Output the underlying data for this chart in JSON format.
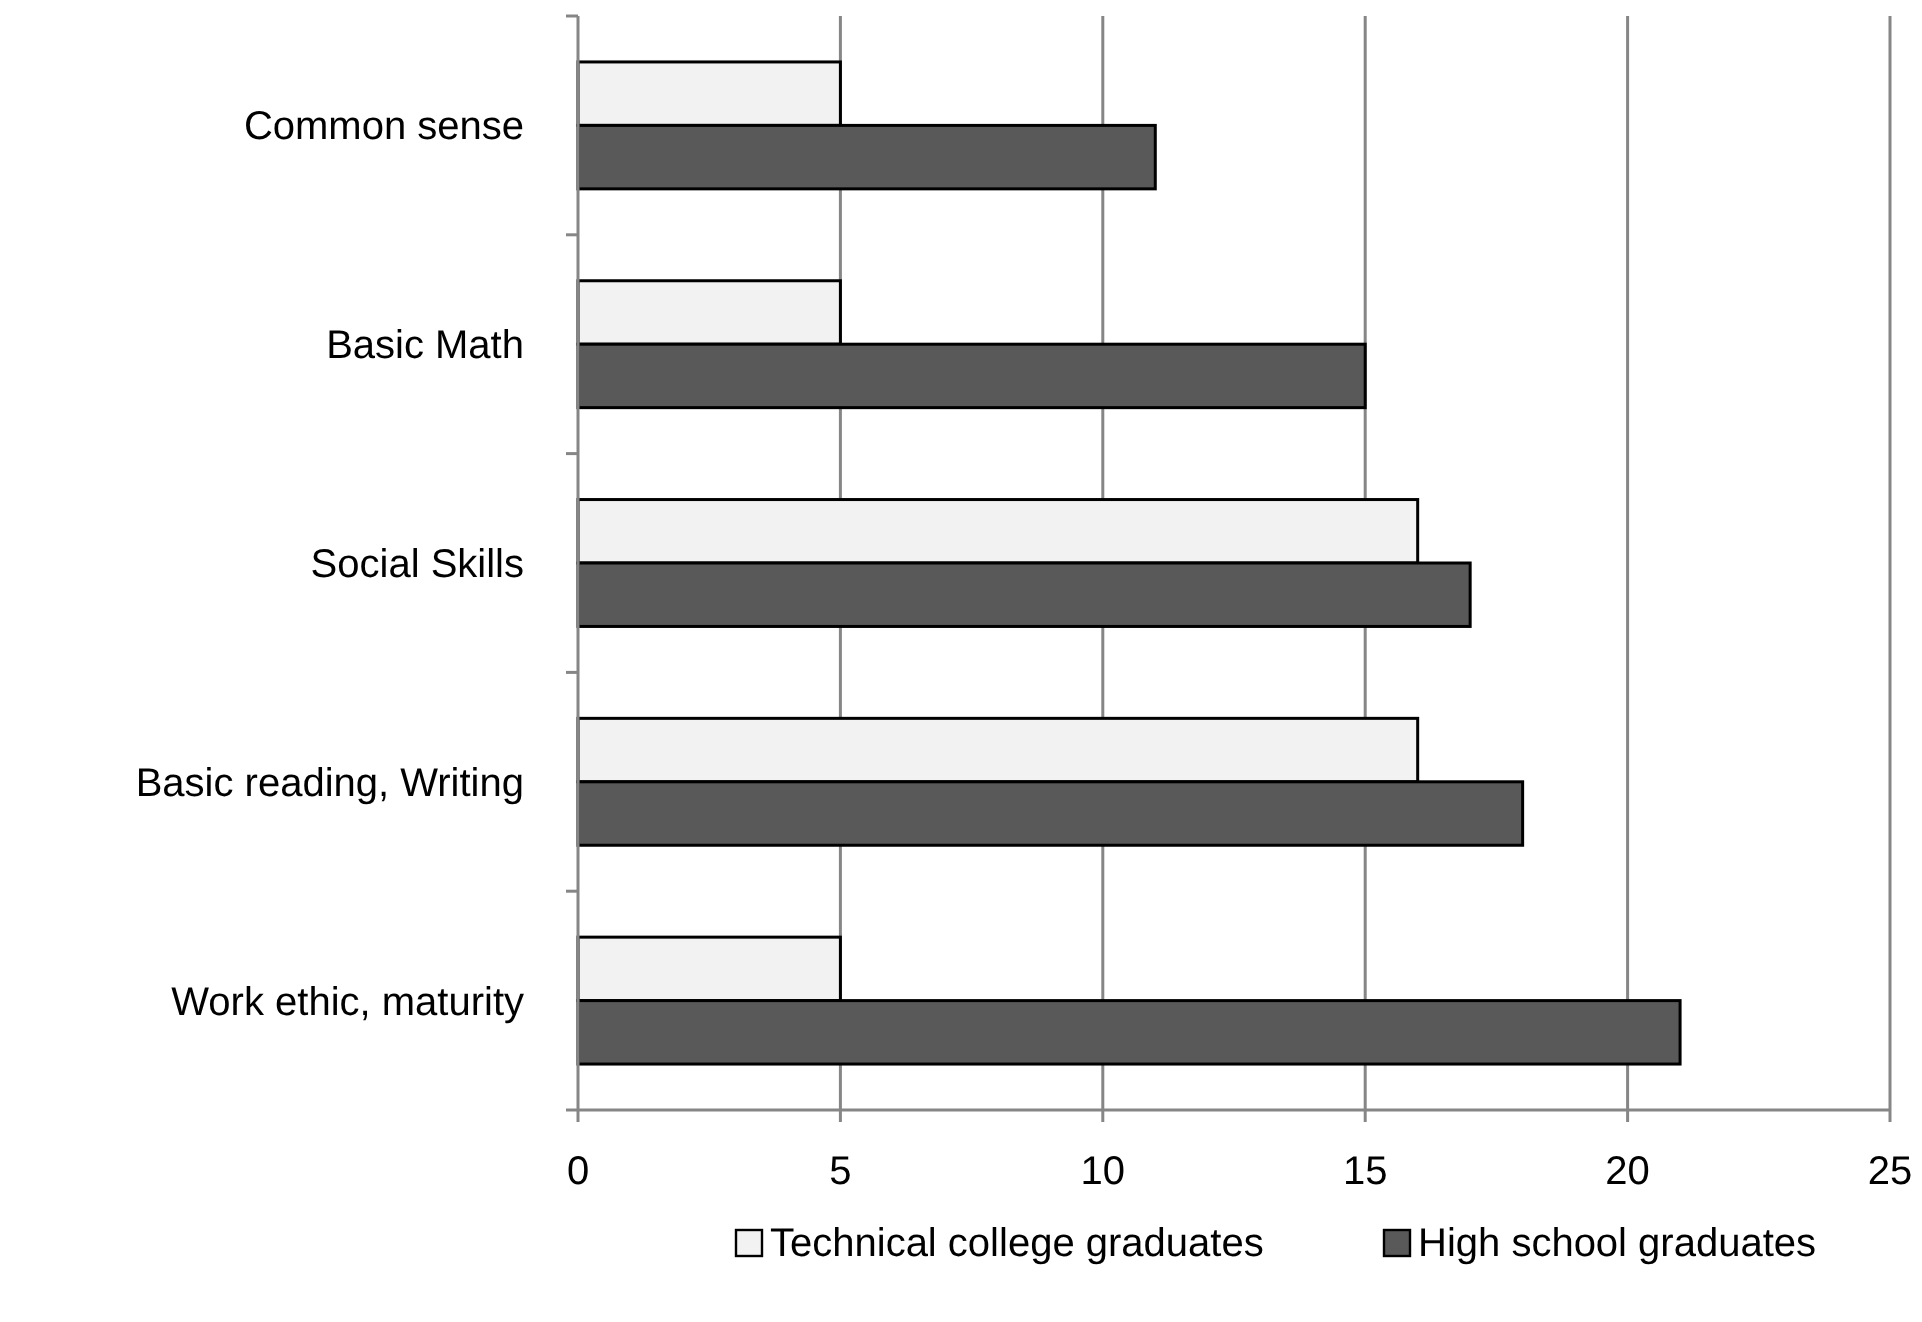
{
  "chart_data": {
    "type": "bar",
    "orientation": "horizontal",
    "categories": [
      "Common sense",
      "Basic Math",
      "Social Skills",
      "Basic reading, Writing",
      "Work ethic, maturity"
    ],
    "series": [
      {
        "name": "Technical college graduates",
        "color": "#f2f2f2",
        "values": [
          5,
          5,
          16,
          16,
          5
        ]
      },
      {
        "name": "High school graduates",
        "color": "#595959",
        "values": [
          11,
          15,
          17,
          18,
          21
        ]
      }
    ],
    "xlim": [
      0,
      25
    ],
    "xticks": [
      0,
      5,
      10,
      15,
      20,
      25
    ],
    "grid": "x",
    "legend": "bottom"
  }
}
